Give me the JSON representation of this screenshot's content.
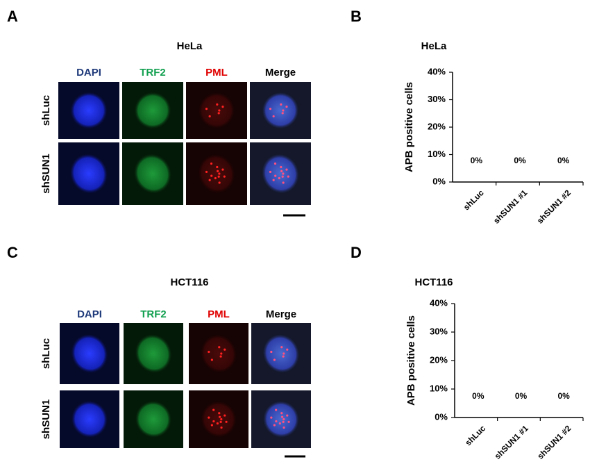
{
  "panel_labels": [
    "A",
    "B",
    "C",
    "D"
  ],
  "microscopy": [
    {
      "title": "HeLa",
      "channels": [
        "DAPI",
        "TRF2",
        "PML",
        "Merge"
      ],
      "rows": [
        "shLuc",
        "shSUN1"
      ]
    },
    {
      "title": "HCT116",
      "channels": [
        "DAPI",
        "TRF2",
        "PML",
        "Merge"
      ],
      "rows": [
        "shLuc",
        "shSUN1"
      ]
    }
  ],
  "chart_data": [
    {
      "type": "bar",
      "title": "HeLa",
      "y_label": "APB positive cells",
      "categories": [
        "shLuc",
        "shSUN1 #1",
        "shSUN1 #2"
      ],
      "values": [
        0,
        0,
        0
      ],
      "value_labels": [
        "0%",
        "0%",
        "0%"
      ],
      "color": "#000000",
      "ylim": [
        0,
        40
      ],
      "yticks": [
        {
          "value": 0,
          "label": "0%"
        },
        {
          "value": 10,
          "label": "10%"
        },
        {
          "value": 20,
          "label": "20%"
        },
        {
          "value": 30,
          "label": "30%"
        },
        {
          "value": 40,
          "label": "40%"
        }
      ]
    },
    {
      "type": "bar",
      "title": "HCT116",
      "y_label": "APB positive cells",
      "categories": [
        "shLuc",
        "shSUN1 #1",
        "shSUN1 #2"
      ],
      "values": [
        0,
        0,
        0
      ],
      "value_labels": [
        "0%",
        "0%",
        "0%"
      ],
      "color": "#000000",
      "ylim": [
        0,
        40
      ],
      "yticks": [
        {
          "value": 0,
          "label": "0%"
        },
        {
          "value": 10,
          "label": "10%"
        },
        {
          "value": 20,
          "label": "20%"
        },
        {
          "value": 30,
          "label": "30%"
        },
        {
          "value": 40,
          "label": "40%"
        }
      ]
    }
  ]
}
